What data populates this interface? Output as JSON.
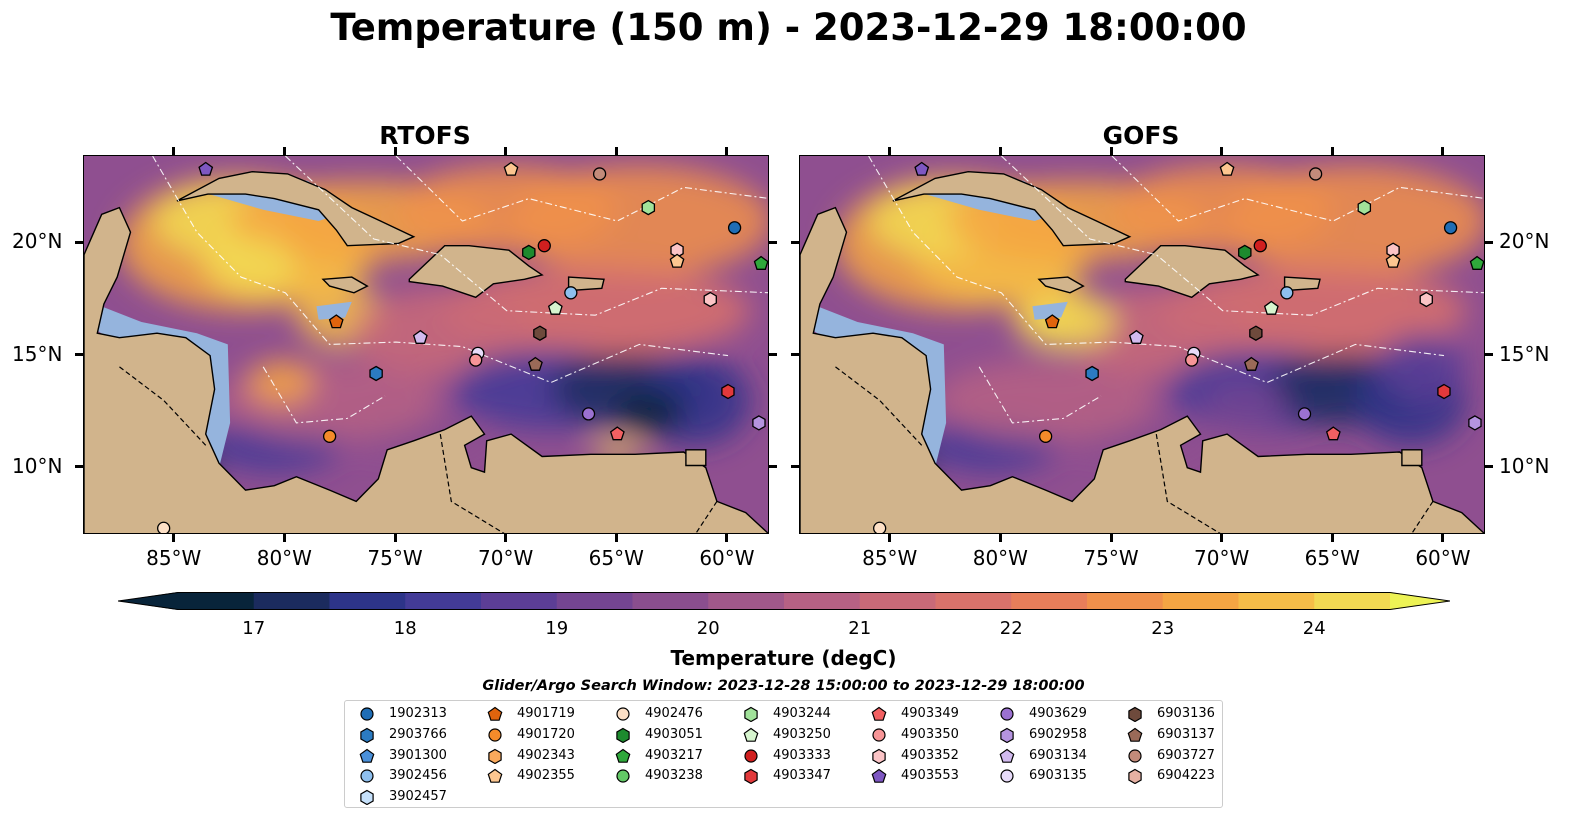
{
  "title": "Temperature (150 m) - 2023-12-29 18:00:00",
  "panels": [
    {
      "title": "RTOFS"
    },
    {
      "title": "GOFS"
    }
  ],
  "axes": {
    "lon_ticks": [
      "85°W",
      "80°W",
      "75°W",
      "70°W",
      "65°W",
      "60°W"
    ],
    "lon_values": [
      -85,
      -80,
      -75,
      -70,
      -65,
      -60
    ],
    "lat_ticks": [
      "20°N",
      "15°N",
      "10°N"
    ],
    "lat_values": [
      20,
      15,
      10
    ],
    "lon_range": [
      -89.1,
      -58.1
    ],
    "lat_range": [
      7.0,
      23.9
    ]
  },
  "colorbar": {
    "label": "Temperature (degC)",
    "ticks": [
      "17",
      "18",
      "19",
      "20",
      "21",
      "22",
      "23",
      "24"
    ],
    "range": [
      16.5,
      24.5
    ],
    "colors": [
      "#08243a",
      "#1b2b5e",
      "#2d3489",
      "#433b97",
      "#5c3e96",
      "#744592",
      "#8a4e8e",
      "#a0588a",
      "#b66184",
      "#c96a78",
      "#d9726b",
      "#e77e5a",
      "#f0904b",
      "#f5a543",
      "#f6bd48",
      "#f2d953"
    ],
    "extend_color_high": "#edf355"
  },
  "map_colors": {
    "land": "#d1b48c",
    "shelf": "#95b4dd",
    "rivers": "#a9bedb",
    "ocean_base": "#8f4f90"
  },
  "legend": {
    "title": "Glider/Argo Search Window: 2023-12-28 15:00:00 to 2023-12-29 18:00:00",
    "columns": [
      [
        {
          "id": "1902313",
          "marker": "circle",
          "color": "#1f6db5"
        },
        {
          "id": "2903766",
          "marker": "hexagon",
          "color": "#2b7bc2"
        },
        {
          "id": "3901300",
          "marker": "pentagon",
          "color": "#4a90d9"
        },
        {
          "id": "3902456",
          "marker": "circle",
          "color": "#8ebfee"
        },
        {
          "id": "3902457",
          "marker": "hexagon",
          "color": "#c6e1fb"
        }
      ],
      [
        {
          "id": "4901719",
          "marker": "pentagon",
          "color": "#e0640d"
        },
        {
          "id": "4901720",
          "marker": "circle",
          "color": "#f58b2a"
        },
        {
          "id": "4902343",
          "marker": "hexagon",
          "color": "#f9a95c"
        },
        {
          "id": "4902355",
          "marker": "pentagon",
          "color": "#fcc690"
        }
      ],
      [
        {
          "id": "4902476",
          "marker": "circle",
          "color": "#fde0c6"
        },
        {
          "id": "4903051",
          "marker": "hexagon",
          "color": "#1d8a2e"
        },
        {
          "id": "4903217",
          "marker": "pentagon",
          "color": "#2fa83b"
        },
        {
          "id": "4903238",
          "marker": "circle",
          "color": "#63c866"
        }
      ],
      [
        {
          "id": "4903244",
          "marker": "hexagon",
          "color": "#a1e29a"
        },
        {
          "id": "4903250",
          "marker": "pentagon",
          "color": "#d7f5cf"
        },
        {
          "id": "4903333",
          "marker": "circle",
          "color": "#d11f1f"
        },
        {
          "id": "4903347",
          "marker": "hexagon",
          "color": "#e2393b"
        }
      ],
      [
        {
          "id": "4903349",
          "marker": "pentagon",
          "color": "#f26062"
        },
        {
          "id": "4903350",
          "marker": "circle",
          "color": "#f79597"
        },
        {
          "id": "4903352",
          "marker": "hexagon",
          "color": "#fbc4c6"
        },
        {
          "id": "4903553",
          "marker": "pentagon",
          "color": "#7e57c2"
        }
      ],
      [
        {
          "id": "4903629",
          "marker": "circle",
          "color": "#9b71d1"
        },
        {
          "id": "6902958",
          "marker": "hexagon",
          "color": "#b594e0"
        },
        {
          "id": "6903134",
          "marker": "pentagon",
          "color": "#d2bbef"
        },
        {
          "id": "6903135",
          "marker": "circle",
          "color": "#e8dcfa"
        }
      ],
      [
        {
          "id": "6903136",
          "marker": "hexagon",
          "color": "#6e4a3c"
        },
        {
          "id": "6903137",
          "marker": "pentagon",
          "color": "#9a6a58"
        },
        {
          "id": "6903727",
          "marker": "circle",
          "color": "#c38b7a"
        },
        {
          "id": "6904223",
          "marker": "hexagon",
          "color": "#e6b1a3"
        }
      ]
    ]
  },
  "floats": [
    {
      "id": "4903553",
      "lon": -83.6,
      "lat": 23.3
    },
    {
      "id": "4902355",
      "lon": -69.8,
      "lat": 23.3
    },
    {
      "id": "6903727",
      "lon": -65.8,
      "lat": 23.1
    },
    {
      "id": "4903244",
      "lon": -63.6,
      "lat": 21.6
    },
    {
      "id": "1902313",
      "lon": -59.7,
      "lat": 20.7
    },
    {
      "id": "4903217",
      "lon": -58.5,
      "lat": 19.1
    },
    {
      "id": "4903051",
      "lon": -69.0,
      "lat": 19.6
    },
    {
      "id": "4903333",
      "lon": -68.3,
      "lat": 19.9
    },
    {
      "id": "4903352",
      "lon": -62.3,
      "lat": 19.7
    },
    {
      "id": "4902355",
      "lon": -62.3,
      "lat": 19.2
    },
    {
      "id": "3902456",
      "lon": -67.1,
      "lat": 17.8
    },
    {
      "id": "4903250",
      "lon": -67.8,
      "lat": 17.1
    },
    {
      "id": "4903352",
      "lon": -60.8,
      "lat": 17.5
    },
    {
      "id": "4901719",
      "lon": -77.7,
      "lat": 16.5
    },
    {
      "id": "6903136",
      "lon": -68.5,
      "lat": 16.0
    },
    {
      "id": "6903134",
      "lon": -73.9,
      "lat": 15.8
    },
    {
      "id": "6903135",
      "lon": -71.3,
      "lat": 15.1
    },
    {
      "id": "4903350",
      "lon": -71.4,
      "lat": 14.8
    },
    {
      "id": "6903137",
      "lon": -68.7,
      "lat": 14.6
    },
    {
      "id": "2903766",
      "lon": -75.9,
      "lat": 14.2
    },
    {
      "id": "4903347",
      "lon": -60.0,
      "lat": 13.4
    },
    {
      "id": "4903629",
      "lon": -66.3,
      "lat": 12.4
    },
    {
      "id": "6902958",
      "lon": -58.6,
      "lat": 12.0
    },
    {
      "id": "4903349",
      "lon": -65.0,
      "lat": 11.5
    },
    {
      "id": "4901720",
      "lon": -78.0,
      "lat": 11.4
    },
    {
      "id": "4902476",
      "lon": -85.5,
      "lat": 7.3
    }
  ]
}
